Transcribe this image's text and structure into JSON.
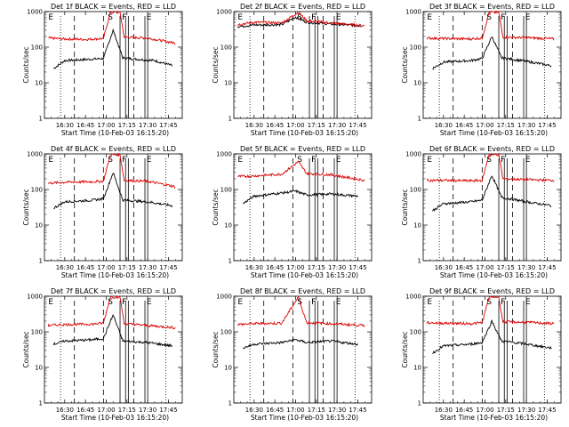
{
  "chart_data": [
    {
      "type": "line",
      "title": "Det 1f BLACK = Events, RED = LLD",
      "xlabel": "Start Time (10-Feb-03 16:15:20)",
      "ylabel": "Counts/sec",
      "yscale": "log",
      "ylim": [
        1,
        1000
      ],
      "ytick_labels": [
        "1",
        "10",
        "100",
        "1000"
      ],
      "xtick_labels": [
        "16:30",
        "16:45",
        "17:00",
        "17:15",
        "17:30",
        "17:45"
      ],
      "markers": [
        "E",
        "S",
        "F",
        "E"
      ],
      "series": [
        {
          "name": "BLACK = Events",
          "color": "#000000",
          "values": [
            {
              "x": "16:22",
              "y": 25
            },
            {
              "x": "16:30",
              "y": 42
            },
            {
              "x": "16:45",
              "y": 45
            },
            {
              "x": "16:58",
              "y": 48
            },
            {
              "x": "17:05",
              "y": 300
            },
            {
              "x": "17:12",
              "y": 50
            },
            {
              "x": "17:25",
              "y": 45
            },
            {
              "x": "17:35",
              "y": 42
            },
            {
              "x": "17:48",
              "y": 30
            }
          ]
        },
        {
          "name": "RED = LLD",
          "color": "#dd0000",
          "values": [
            {
              "x": "16:18",
              "y": 180
            },
            {
              "x": "16:30",
              "y": 170
            },
            {
              "x": "16:45",
              "y": 165
            },
            {
              "x": "16:58",
              "y": 175
            },
            {
              "x": "17:03",
              "y": 950
            },
            {
              "x": "17:10",
              "y": 950
            },
            {
              "x": "17:13",
              "y": 190
            },
            {
              "x": "17:30",
              "y": 180
            },
            {
              "x": "17:50",
              "y": 130
            }
          ]
        }
      ]
    },
    {
      "type": "line",
      "title": "Det 2f BLACK = Events, RED = LLD",
      "xlabel": "Start Time (10-Feb-03 16:15:20)",
      "ylabel": "Counts/sec",
      "yscale": "log",
      "ylim": [
        1,
        1000
      ],
      "ytick_labels": [
        "1",
        "10",
        "100",
        "1000"
      ],
      "xtick_labels": [
        "16:30",
        "16:45",
        "17:00",
        "17:15",
        "17:30",
        "17:45"
      ],
      "markers": [
        "E",
        "S",
        "F",
        "E"
      ],
      "series": [
        {
          "name": "BLACK = Events",
          "color": "#000000",
          "values": [
            {
              "x": "16:18",
              "y": 380
            },
            {
              "x": "16:30",
              "y": 420
            },
            {
              "x": "16:50",
              "y": 430
            },
            {
              "x": "17:00",
              "y": 700
            },
            {
              "x": "17:08",
              "y": 500
            },
            {
              "x": "17:25",
              "y": 450
            },
            {
              "x": "17:48",
              "y": 400
            }
          ]
        },
        {
          "name": "RED = LLD",
          "color": "#dd0000",
          "values": [
            {
              "x": "16:18",
              "y": 430
            },
            {
              "x": "16:30",
              "y": 500
            },
            {
              "x": "16:50",
              "y": 480
            },
            {
              "x": "17:02",
              "y": 950
            },
            {
              "x": "17:08",
              "y": 550
            },
            {
              "x": "17:25",
              "y": 480
            },
            {
              "x": "17:50",
              "y": 400
            }
          ]
        }
      ]
    },
    {
      "type": "line",
      "title": "Det 3f BLACK = Events, RED = LLD",
      "xlabel": "Start Time (10-Feb-03 16:15:20)",
      "ylabel": "Counts/sec",
      "yscale": "log",
      "ylim": [
        1,
        1000
      ],
      "ytick_labels": [
        "1",
        "10",
        "100",
        "1000"
      ],
      "xtick_labels": [
        "16:30",
        "16:45",
        "17:00",
        "17:15",
        "17:30",
        "17:45"
      ],
      "markers": [
        "E",
        "S",
        "F",
        "E"
      ],
      "series": [
        {
          "name": "BLACK = Events",
          "color": "#000000",
          "values": [
            {
              "x": "16:22",
              "y": 25
            },
            {
              "x": "16:30",
              "y": 38
            },
            {
              "x": "16:50",
              "y": 42
            },
            {
              "x": "16:58",
              "y": 48
            },
            {
              "x": "17:05",
              "y": 200
            },
            {
              "x": "17:12",
              "y": 50
            },
            {
              "x": "17:30",
              "y": 40
            },
            {
              "x": "17:48",
              "y": 30
            }
          ]
        },
        {
          "name": "RED = LLD",
          "color": "#dd0000",
          "values": [
            {
              "x": "16:18",
              "y": 180
            },
            {
              "x": "16:30",
              "y": 175
            },
            {
              "x": "16:50",
              "y": 170
            },
            {
              "x": "16:58",
              "y": 180
            },
            {
              "x": "17:03",
              "y": 950
            },
            {
              "x": "17:10",
              "y": 950
            },
            {
              "x": "17:13",
              "y": 190
            },
            {
              "x": "17:30",
              "y": 185
            },
            {
              "x": "17:50",
              "y": 170
            }
          ]
        }
      ]
    },
    {
      "type": "line",
      "title": "Det 4f BLACK = Events, RED = LLD",
      "xlabel": "Start Time (10-Feb-03 16:15:20)",
      "ylabel": "Counts/sec",
      "yscale": "log",
      "ylim": [
        1,
        1000
      ],
      "ytick_labels": [
        "1",
        "10",
        "100",
        "1000"
      ],
      "xtick_labels": [
        "16:30",
        "16:45",
        "17:00",
        "17:15",
        "17:30",
        "17:45"
      ],
      "markers": [
        "E",
        "S",
        "F",
        "E"
      ],
      "series": [
        {
          "name": "BLACK = Events",
          "color": "#000000",
          "values": [
            {
              "x": "16:22",
              "y": 30
            },
            {
              "x": "16:30",
              "y": 45
            },
            {
              "x": "16:50",
              "y": 50
            },
            {
              "x": "16:58",
              "y": 55
            },
            {
              "x": "17:05",
              "y": 300
            },
            {
              "x": "17:12",
              "y": 50
            },
            {
              "x": "17:30",
              "y": 45
            },
            {
              "x": "17:48",
              "y": 35
            }
          ]
        },
        {
          "name": "RED = LLD",
          "color": "#dd0000",
          "values": [
            {
              "x": "16:18",
              "y": 150
            },
            {
              "x": "16:30",
              "y": 160
            },
            {
              "x": "16:50",
              "y": 165
            },
            {
              "x": "16:58",
              "y": 170
            },
            {
              "x": "17:03",
              "y": 950
            },
            {
              "x": "17:10",
              "y": 950
            },
            {
              "x": "17:13",
              "y": 180
            },
            {
              "x": "17:30",
              "y": 170
            },
            {
              "x": "17:50",
              "y": 120
            }
          ]
        }
      ]
    },
    {
      "type": "line",
      "title": "Det 5f BLACK = Events, RED = LLD",
      "xlabel": "Start Time (10-Feb-03 16:15:20)",
      "ylabel": "Counts/sec",
      "yscale": "log",
      "ylim": [
        1,
        1000
      ],
      "ytick_labels": [
        "1",
        "10",
        "100",
        "1000"
      ],
      "xtick_labels": [
        "16:30",
        "16:45",
        "17:00",
        "17:15",
        "17:30",
        "17:45"
      ],
      "markers": [
        "E",
        "S",
        "F",
        "E"
      ],
      "series": [
        {
          "name": "BLACK = Events",
          "color": "#000000",
          "values": [
            {
              "x": "16:22",
              "y": 40
            },
            {
              "x": "16:30",
              "y": 65
            },
            {
              "x": "16:50",
              "y": 80
            },
            {
              "x": "17:00",
              "y": 90
            },
            {
              "x": "17:08",
              "y": 70
            },
            {
              "x": "17:25",
              "y": 75
            },
            {
              "x": "17:45",
              "y": 65
            }
          ]
        },
        {
          "name": "RED = LLD",
          "color": "#dd0000",
          "values": [
            {
              "x": "16:18",
              "y": 230
            },
            {
              "x": "16:30",
              "y": 240
            },
            {
              "x": "16:50",
              "y": 270
            },
            {
              "x": "17:02",
              "y": 600
            },
            {
              "x": "17:08",
              "y": 280
            },
            {
              "x": "17:25",
              "y": 260
            },
            {
              "x": "17:50",
              "y": 180
            }
          ]
        }
      ]
    },
    {
      "type": "line",
      "title": "Det 6f BLACK = Events, RED = LLD",
      "xlabel": "Start Time (10-Feb-03 16:15:20)",
      "ylabel": "Counts/sec",
      "yscale": "log",
      "ylim": [
        1,
        1000
      ],
      "ytick_labels": [
        "1",
        "10",
        "100",
        "1000"
      ],
      "xtick_labels": [
        "16:30",
        "16:45",
        "17:00",
        "17:15",
        "17:30",
        "17:45"
      ],
      "markers": [
        "E",
        "S",
        "F",
        "E"
      ],
      "series": [
        {
          "name": "BLACK = Events",
          "color": "#000000",
          "values": [
            {
              "x": "16:22",
              "y": 25
            },
            {
              "x": "16:30",
              "y": 40
            },
            {
              "x": "16:50",
              "y": 45
            },
            {
              "x": "16:58",
              "y": 50
            },
            {
              "x": "17:05",
              "y": 250
            },
            {
              "x": "17:12",
              "y": 60
            },
            {
              "x": "17:30",
              "y": 45
            },
            {
              "x": "17:48",
              "y": 35
            }
          ]
        },
        {
          "name": "RED = LLD",
          "color": "#dd0000",
          "values": [
            {
              "x": "16:18",
              "y": 180
            },
            {
              "x": "16:30",
              "y": 180
            },
            {
              "x": "16:50",
              "y": 175
            },
            {
              "x": "16:58",
              "y": 180
            },
            {
              "x": "17:03",
              "y": 950
            },
            {
              "x": "17:10",
              "y": 950
            },
            {
              "x": "17:13",
              "y": 200
            },
            {
              "x": "17:30",
              "y": 190
            },
            {
              "x": "17:50",
              "y": 180
            }
          ]
        }
      ]
    },
    {
      "type": "line",
      "title": "Det 7f BLACK = Events, RED = LLD",
      "xlabel": "Start Time (10-Feb-03 16:15:20)",
      "ylabel": "Counts/sec",
      "yscale": "log",
      "ylim": [
        1,
        1000
      ],
      "ytick_labels": [
        "1",
        "10",
        "100",
        "1000"
      ],
      "xtick_labels": [
        "16:30",
        "16:45",
        "17:00",
        "17:15",
        "17:30",
        "17:45"
      ],
      "markers": [
        "E",
        "S",
        "F",
        "E"
      ],
      "series": [
        {
          "name": "BLACK = Events",
          "color": "#000000",
          "values": [
            {
              "x": "16:22",
              "y": 45
            },
            {
              "x": "16:30",
              "y": 55
            },
            {
              "x": "16:50",
              "y": 60
            },
            {
              "x": "16:58",
              "y": 65
            },
            {
              "x": "17:05",
              "y": 300
            },
            {
              "x": "17:12",
              "y": 55
            },
            {
              "x": "17:30",
              "y": 50
            },
            {
              "x": "17:48",
              "y": 40
            }
          ]
        },
        {
          "name": "RED = LLD",
          "color": "#dd0000",
          "values": [
            {
              "x": "16:18",
              "y": 150
            },
            {
              "x": "16:30",
              "y": 160
            },
            {
              "x": "16:50",
              "y": 165
            },
            {
              "x": "16:58",
              "y": 175
            },
            {
              "x": "17:03",
              "y": 950
            },
            {
              "x": "17:10",
              "y": 950
            },
            {
              "x": "17:13",
              "y": 170
            },
            {
              "x": "17:30",
              "y": 150
            },
            {
              "x": "17:50",
              "y": 130
            }
          ]
        }
      ]
    },
    {
      "type": "line",
      "title": "Det 8f BLACK = Events, RED = LLD",
      "xlabel": "Start Time (10-Feb-03 16:15:20)",
      "ylabel": "Counts/sec",
      "yscale": "log",
      "ylim": [
        1,
        1000
      ],
      "ytick_labels": [
        "1",
        "10",
        "100",
        "1000"
      ],
      "xtick_labels": [
        "16:30",
        "16:45",
        "17:00",
        "17:15",
        "17:30",
        "17:45"
      ],
      "markers": [
        "E",
        "S",
        "F",
        "E"
      ],
      "series": [
        {
          "name": "BLACK = Events",
          "color": "#000000",
          "values": [
            {
              "x": "16:22",
              "y": 35
            },
            {
              "x": "16:30",
              "y": 45
            },
            {
              "x": "16:50",
              "y": 50
            },
            {
              "x": "17:00",
              "y": 60
            },
            {
              "x": "17:08",
              "y": 50
            },
            {
              "x": "17:25",
              "y": 55
            },
            {
              "x": "17:45",
              "y": 45
            }
          ]
        },
        {
          "name": "RED = LLD",
          "color": "#dd0000",
          "values": [
            {
              "x": "16:18",
              "y": 160
            },
            {
              "x": "16:30",
              "y": 170
            },
            {
              "x": "16:50",
              "y": 175
            },
            {
              "x": "17:02",
              "y": 950
            },
            {
              "x": "17:08",
              "y": 180
            },
            {
              "x": "17:25",
              "y": 170
            },
            {
              "x": "17:50",
              "y": 150
            }
          ]
        }
      ]
    },
    {
      "type": "line",
      "title": "Det 9f BLACK = Events, RED = LLD",
      "xlabel": "Start Time (10-Feb-03 16:15:20)",
      "ylabel": "Counts/sec",
      "yscale": "log",
      "ylim": [
        1,
        1000
      ],
      "ytick_labels": [
        "1",
        "10",
        "100",
        "1000"
      ],
      "xtick_labels": [
        "16:30",
        "16:45",
        "17:00",
        "17:15",
        "17:30",
        "17:45"
      ],
      "markers": [
        "E",
        "S",
        "F",
        "E"
      ],
      "series": [
        {
          "name": "BLACK = Events",
          "color": "#000000",
          "values": [
            {
              "x": "16:22",
              "y": 25
            },
            {
              "x": "16:30",
              "y": 40
            },
            {
              "x": "16:50",
              "y": 45
            },
            {
              "x": "16:58",
              "y": 50
            },
            {
              "x": "17:05",
              "y": 200
            },
            {
              "x": "17:12",
              "y": 55
            },
            {
              "x": "17:30",
              "y": 45
            },
            {
              "x": "17:48",
              "y": 35
            }
          ]
        },
        {
          "name": "RED = LLD",
          "color": "#dd0000",
          "values": [
            {
              "x": "16:18",
              "y": 180
            },
            {
              "x": "16:30",
              "y": 175
            },
            {
              "x": "16:50",
              "y": 170
            },
            {
              "x": "16:58",
              "y": 180
            },
            {
              "x": "17:03",
              "y": 950
            },
            {
              "x": "17:10",
              "y": 950
            },
            {
              "x": "17:13",
              "y": 190
            },
            {
              "x": "17:30",
              "y": 185
            },
            {
              "x": "17:50",
              "y": 170
            }
          ]
        }
      ]
    }
  ]
}
